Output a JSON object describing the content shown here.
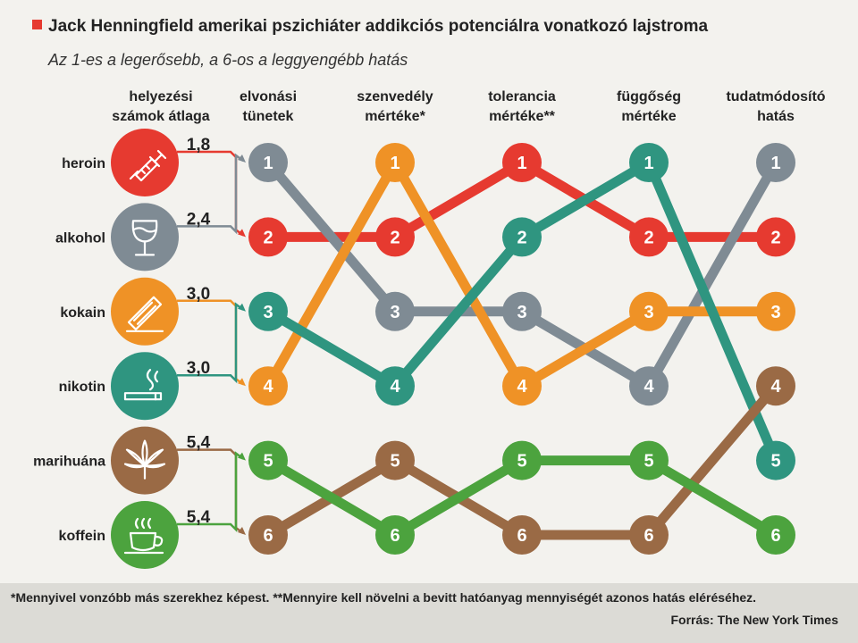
{
  "chart_data": {
    "type": "bump",
    "title": "Jack Henningfield amerikai pszichiáter addikciós potenciálra vonatkozó lajstroma",
    "subtitle": "Az 1-es a legerősebb, a 6-os a leggyengébb hatás",
    "avg_column_label": [
      "helyezési",
      "számok átlaga"
    ],
    "columns": [
      [
        "elvonási",
        "tünetek"
      ],
      [
        "szenvedély",
        "mértéke*"
      ],
      [
        "tolerancia",
        "mértéke**"
      ],
      [
        "függőség",
        "mértéke"
      ],
      [
        "tudatmódosító",
        "hatás"
      ]
    ],
    "substances": [
      {
        "name": "heroin",
        "icon": "syringe-icon",
        "average": "1,8",
        "color": "#e63a30",
        "ranks": [
          2,
          2,
          1,
          2,
          2
        ]
      },
      {
        "name": "alkohol",
        "icon": "wine-glass-icon",
        "average": "2,4",
        "color": "#7f8b94",
        "ranks": [
          1,
          3,
          3,
          4,
          1
        ]
      },
      {
        "name": "kokain",
        "icon": "cocaine-icon",
        "average": "3,0",
        "color": "#ef9226",
        "ranks": [
          4,
          1,
          4,
          3,
          3
        ]
      },
      {
        "name": "nikotin",
        "icon": "cigarette-icon",
        "average": "3,0",
        "color": "#2f9580",
        "ranks": [
          3,
          4,
          2,
          1,
          5
        ]
      },
      {
        "name": "marihuána",
        "icon": "cannabis-icon",
        "average": "5,4",
        "color": "#9a6a45",
        "ranks": [
          6,
          5,
          6,
          6,
          4
        ]
      },
      {
        "name": "koffein",
        "icon": "coffee-cup-icon",
        "average": "5,4",
        "color": "#4ca33e",
        "ranks": [
          5,
          6,
          5,
          5,
          6
        ]
      }
    ]
  },
  "footer": {
    "footnote": "*Mennyivel vonzóbb más szerekhez képest. **Mennyire kell növelni a bevitt hatóanyag mennyiségét azonos hatás eléréséhez.",
    "source": "Forrás: The New York Times"
  }
}
